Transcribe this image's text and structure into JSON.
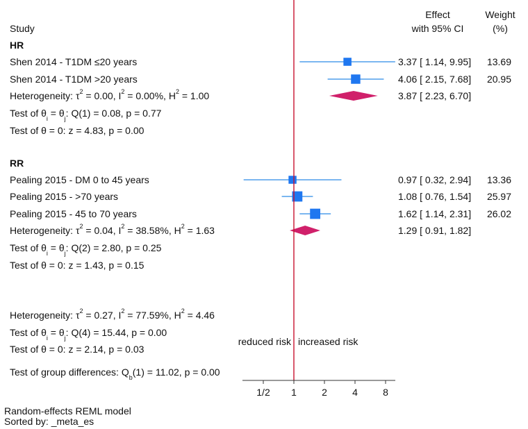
{
  "chart_data": {
    "type": "forest",
    "scale": "log2",
    "xticks": [
      "1/2",
      "1",
      "2",
      "4",
      "8"
    ],
    "xtick_values": [
      0.5,
      1,
      2,
      4,
      8
    ],
    "reference_line": 1,
    "header": {
      "study": "Study",
      "effect_line1": "Effect",
      "effect_line2": "with 95% CI",
      "weight_line1": "Weight",
      "weight_line2": "(%)"
    },
    "groups": [
      {
        "name": "HR",
        "studies": [
          {
            "label": "Shen 2014 - T1DM ≤20 years",
            "es": 3.37,
            "lo": 1.14,
            "hi": 9.95,
            "ci_text": "3.37 [ 1.14, 9.95]",
            "weight": 13.69,
            "weight_text": "13.69"
          },
          {
            "label": "Shen 2014 - T1DM >20 years",
            "es": 4.06,
            "lo": 2.15,
            "hi": 7.68,
            "ci_text": "4.06 [ 2.15, 7.68]",
            "weight": 20.95,
            "weight_text": "20.95"
          }
        ],
        "pooled": {
          "es": 3.87,
          "lo": 2.23,
          "hi": 6.7,
          "ci_text": "3.87 [ 2.23, 6.70]"
        },
        "heterogeneity": {
          "prefix": "Heterogeneity: τ",
          "tau2": "= 0.00, I",
          "i2": "= 0.00%, H",
          "h2": "= 1.00"
        },
        "test_q": {
          "prefix": "Test of θ",
          "mid": " = θ",
          "rest": ": Q(1) = 0.08, p = 0.77"
        },
        "test_z": "Test of θ = 0: z = 4.83, p = 0.00"
      },
      {
        "name": "RR",
        "studies": [
          {
            "label": "Pealing 2015 - DM 0 to 45 years",
            "es": 0.97,
            "lo": 0.32,
            "hi": 2.94,
            "ci_text": "0.97 [ 0.32, 2.94]",
            "weight": 13.36,
            "weight_text": "13.36"
          },
          {
            "label": "Pealing 2015 - >70 years",
            "es": 1.08,
            "lo": 0.76,
            "hi": 1.54,
            "ci_text": "1.08 [ 0.76, 1.54]",
            "weight": 25.97,
            "weight_text": "25.97"
          },
          {
            "label": "Pealing 2015 - 45 to 70 years",
            "es": 1.62,
            "lo": 1.14,
            "hi": 2.31,
            "ci_text": "1.62 [ 1.14, 2.31]",
            "weight": 26.02,
            "weight_text": "26.02"
          }
        ],
        "pooled": {
          "es": 1.29,
          "lo": 0.91,
          "hi": 1.82,
          "ci_text": "1.29 [ 0.91, 1.82]"
        },
        "heterogeneity": {
          "prefix": "Heterogeneity: τ",
          "tau2": "= 0.04, I",
          "i2": "= 38.58%, H",
          "h2": "= 1.63"
        },
        "test_q": {
          "prefix": "Test of θ",
          "mid": " = θ",
          "rest": ": Q(2) = 2.80, p = 0.25"
        },
        "test_z": "Test of θ = 0: z = 1.43, p = 0.15"
      }
    ],
    "overall": {
      "heterogeneity": {
        "prefix": "Heterogeneity: τ",
        "tau2": "= 0.27, I",
        "i2": "= 77.59%, H",
        "h2": "= 4.46"
      },
      "test_q": {
        "prefix": "Test of θ",
        "mid": " = θ",
        "rest": ": Q(4) = 15.44, p = 0.00"
      },
      "test_z": "Test of θ = 0: z = 2.14, p = 0.03",
      "group_diff": {
        "prefix": "Test of group differences: Q",
        "sub": "b",
        "rest": "(1) = 11.02, p = 0.00"
      }
    },
    "annotation_left": "reduced risk",
    "annotation_right": "increased risk",
    "footnote1": "Random-effects REML model",
    "footnote2": "Sorted by: _meta_es",
    "colors": {
      "study": "#1f77f0",
      "ci_line": "#2a8ae6",
      "pooled": "#d0206a",
      "refline": "#c8102e",
      "axis": "#333333"
    }
  }
}
